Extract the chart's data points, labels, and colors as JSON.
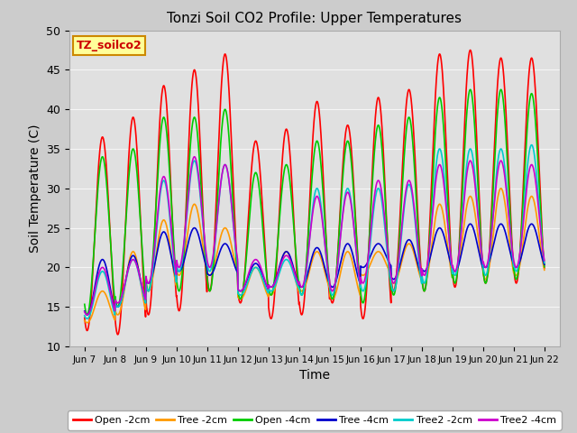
{
  "title": "Tonzi Soil CO2 Profile: Upper Temperatures",
  "xlabel": "Time",
  "ylabel": "Soil Temperature (C)",
  "ylim": [
    10,
    50
  ],
  "xlim_days": [
    6.5,
    22.5
  ],
  "x_ticks": [
    7,
    8,
    9,
    10,
    11,
    12,
    13,
    14,
    15,
    16,
    17,
    18,
    19,
    20,
    21,
    22
  ],
  "x_tick_labels": [
    "Jun 7",
    "Jun 8",
    "Jun 9",
    "Jun 10",
    "Jun 11",
    "Jun 12",
    "Jun 13",
    "Jun 14",
    "Jun 15",
    "Jun 16",
    "Jun 17",
    "Jun 18",
    "Jun 19",
    "Jun 20",
    "Jun 21",
    "Jun 22"
  ],
  "figure_bg": "#cccccc",
  "plot_bg": "#e0e0e0",
  "grid_color": "#f5f5f5",
  "label_box_color": "#ffff99",
  "label_box_edge": "#cc8800",
  "label_text": "TZ_soilco2",
  "label_text_color": "#cc0000",
  "series": [
    {
      "name": "Open -2cm",
      "color": "#ff0000",
      "lw": 1.2
    },
    {
      "name": "Tree -2cm",
      "color": "#ff9900",
      "lw": 1.2
    },
    {
      "name": "Open -4cm",
      "color": "#00cc00",
      "lw": 1.2
    },
    {
      "name": "Tree -4cm",
      "color": "#0000cc",
      "lw": 1.2
    },
    {
      "name": "Tree2 -2cm",
      "color": "#00cccc",
      "lw": 1.2
    },
    {
      "name": "Tree2 -4cm",
      "color": "#cc00cc",
      "lw": 1.2
    }
  ],
  "daily_peaks": {
    "Open -2cm": [
      36.5,
      12.0,
      39.0,
      11.5,
      43.0,
      14.0,
      45.0,
      14.5,
      47.0,
      17.0,
      36.0,
      15.5,
      37.5,
      13.5,
      41.0,
      14.0,
      38.0,
      15.5,
      41.5,
      13.5,
      42.5,
      17.0,
      47.0,
      17.0,
      47.5,
      17.5,
      46.5,
      18.0,
      46.5,
      18.0
    ],
    "Tree -2cm": [
      17.0,
      13.0,
      22.0,
      14.0,
      26.0,
      17.0,
      28.0,
      19.0,
      25.0,
      19.0,
      20.0,
      16.0,
      22.0,
      16.5,
      22.0,
      17.0,
      22.0,
      16.0,
      22.0,
      19.0,
      23.0,
      18.0,
      28.0,
      18.0,
      29.0,
      19.0,
      30.0,
      18.5,
      29.0,
      19.0
    ],
    "Open -4cm": [
      34.0,
      14.0,
      35.0,
      15.0,
      39.0,
      17.0,
      39.0,
      17.0,
      40.0,
      17.0,
      32.0,
      16.0,
      33.0,
      16.5,
      36.0,
      16.5,
      36.0,
      16.0,
      38.0,
      15.5,
      39.0,
      16.5,
      41.5,
      17.0,
      42.5,
      18.0,
      42.5,
      18.0,
      42.0,
      18.5
    ],
    "Tree -4cm": [
      21.0,
      14.0,
      21.5,
      15.0,
      24.5,
      18.0,
      25.0,
      19.5,
      23.0,
      19.0,
      20.5,
      17.0,
      22.0,
      17.5,
      22.5,
      17.5,
      23.0,
      17.5,
      23.0,
      20.0,
      23.5,
      18.5,
      25.0,
      19.5,
      25.5,
      19.5,
      25.5,
      20.0,
      25.5,
      20.0
    ],
    "Tree2 -2cm": [
      19.5,
      13.5,
      21.0,
      15.0,
      31.0,
      17.0,
      33.5,
      19.5,
      33.0,
      19.5,
      20.0,
      16.5,
      21.0,
      17.0,
      30.0,
      16.5,
      30.0,
      16.5,
      30.0,
      17.0,
      30.5,
      17.0,
      35.0,
      18.0,
      35.0,
      19.0,
      35.0,
      19.0,
      35.5,
      19.5
    ],
    "Tree2 -4cm": [
      20.0,
      14.0,
      21.0,
      15.5,
      31.5,
      18.0,
      34.0,
      20.0,
      33.0,
      20.0,
      21.0,
      17.0,
      21.5,
      17.5,
      29.0,
      17.5,
      29.5,
      17.0,
      31.0,
      18.0,
      31.0,
      18.0,
      33.0,
      19.0,
      33.5,
      19.5,
      33.5,
      20.0,
      33.0,
      20.0
    ]
  },
  "y_ticks": [
    10,
    15,
    20,
    25,
    30,
    35,
    40,
    45,
    50
  ]
}
